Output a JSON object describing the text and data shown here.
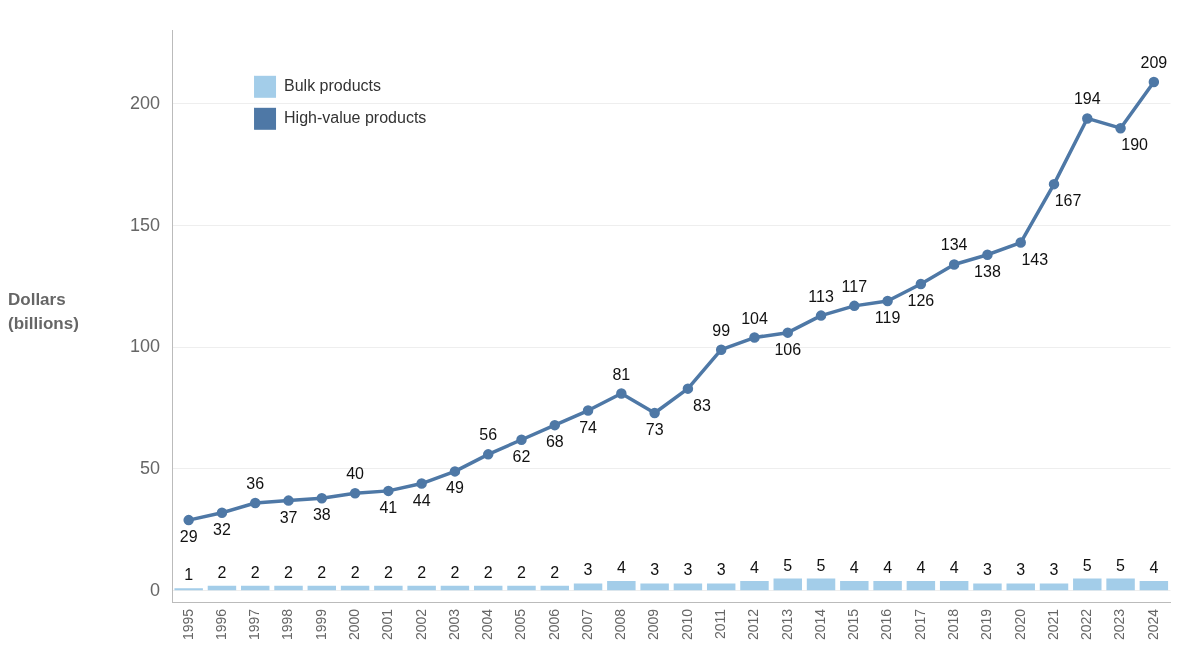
{
  "chart_data": {
    "type": "bar",
    "ylabel": "Dollars (billions)",
    "categories": [
      "1995",
      "1996",
      "1997",
      "1998",
      "1999",
      "2000",
      "2001",
      "2002",
      "2003",
      "2004",
      "2005",
      "2006",
      "2007",
      "2008",
      "2009",
      "2010",
      "2011",
      "2012",
      "2013",
      "2014",
      "2015",
      "2016",
      "2017",
      "2018",
      "2019",
      "2020",
      "2021",
      "2022",
      "2023",
      "2024"
    ],
    "series": [
      {
        "name": "Bulk products",
        "color": "#a3cde9",
        "values": [
          1,
          2,
          2,
          2,
          2,
          2,
          2,
          2,
          2,
          2,
          2,
          2,
          3,
          4,
          3,
          3,
          3,
          4,
          5,
          5,
          4,
          4,
          4,
          4,
          3,
          3,
          3,
          5,
          5,
          4
        ]
      },
      {
        "name": "High-value products",
        "type": "line",
        "color": "#4e78a6",
        "values": [
          29,
          32,
          36,
          37,
          38,
          40,
          41,
          44,
          49,
          56,
          62,
          68,
          74,
          81,
          73,
          83,
          99,
          104,
          106,
          113,
          117,
          119,
          126,
          134,
          138,
          143,
          167,
          194,
          190,
          209
        ]
      }
    ],
    "ylim": [
      -5,
      230
    ],
    "yticks": [
      0,
      50,
      100,
      150,
      200
    ],
    "grid": "y",
    "legend": "top left",
    "marker": "circle",
    "data_labels": true
  }
}
